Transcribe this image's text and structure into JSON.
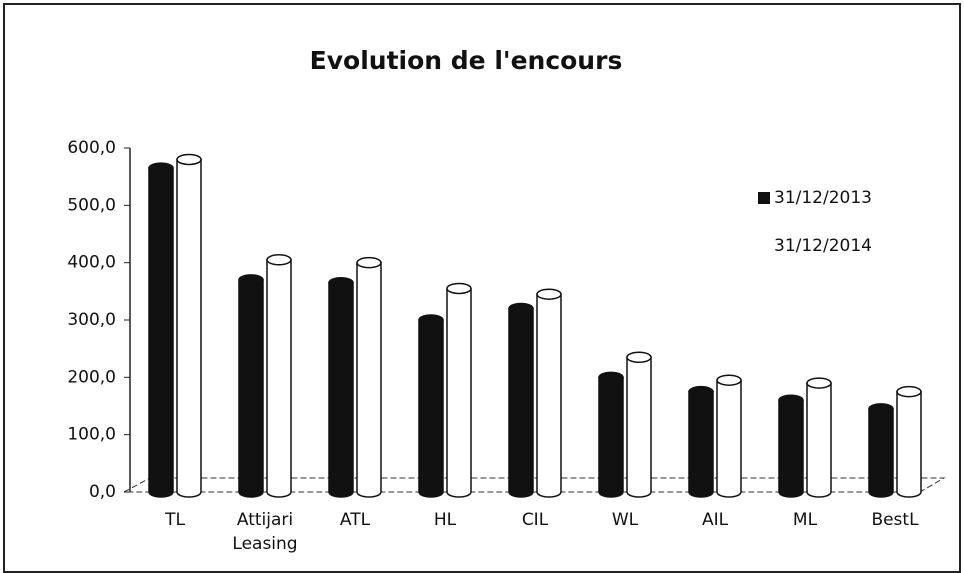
{
  "chart_data": {
    "type": "bar3d",
    "title": "Evolution de l'encours",
    "categories": [
      "TL",
      "Attijari Leasing",
      "ATL",
      "HL",
      "CIL",
      "WL",
      "AIL",
      "ML",
      "BestL"
    ],
    "series": [
      {
        "name": "31/12/2013",
        "color": "#111111",
        "values": [
          565,
          370,
          365,
          300,
          320,
          200,
          175,
          160,
          145
        ]
      },
      {
        "name": "31/12/2014",
        "color": "#ffffff",
        "values": [
          580,
          405,
          400,
          355,
          345,
          235,
          195,
          190,
          175
        ]
      }
    ],
    "ylim": [
      0,
      600
    ],
    "yticks": [
      {
        "value": 0,
        "label": "0,0"
      },
      {
        "value": 100,
        "label": "100,0"
      },
      {
        "value": 200,
        "label": "200,0"
      },
      {
        "value": 300,
        "label": "300,0"
      },
      {
        "value": 400,
        "label": "400,0"
      },
      {
        "value": 500,
        "label": "500,0"
      },
      {
        "value": 600,
        "label": "600,0"
      }
    ],
    "legend": "right",
    "grid": false
  }
}
